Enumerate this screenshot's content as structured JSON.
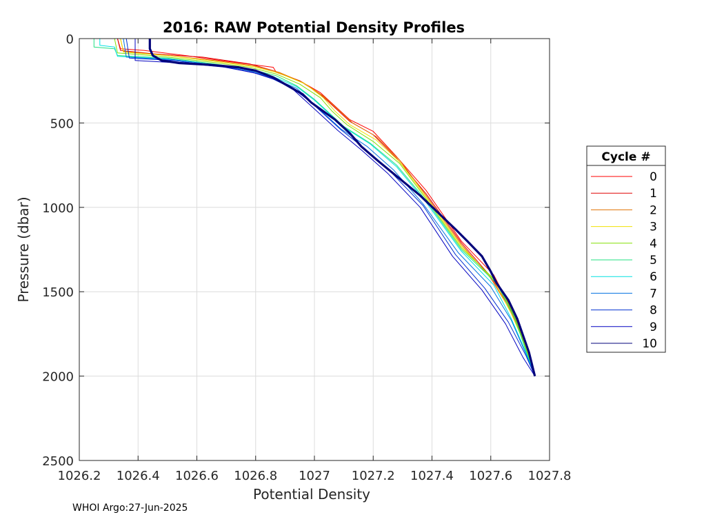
{
  "chart_data": {
    "type": "line",
    "title": "2016: RAW Potential Density Profiles",
    "xlabel": "Potential Density",
    "ylabel": "Pressure (dbar)",
    "xlim": [
      1026.2,
      1027.8
    ],
    "ylim": [
      0,
      2500
    ],
    "y_reversed": true,
    "grid": true,
    "x_ticks": [
      "1026.2",
      "1026.4",
      "1026.6",
      "1026.8",
      "1027",
      "1027.2",
      "1027.4",
      "1027.6",
      "1027.8"
    ],
    "y_ticks": [
      "0",
      "500",
      "1000",
      "1500",
      "2000",
      "2500"
    ],
    "legend": {
      "title": "Cycle #",
      "position": "right"
    },
    "series": [
      {
        "name": "0",
        "color": "#ff0000",
        "points": [
          [
            1026.33,
            0
          ],
          [
            1026.34,
            60
          ],
          [
            1026.42,
            70
          ],
          [
            1026.56,
            100
          ],
          [
            1026.68,
            130
          ],
          [
            1026.86,
            170
          ],
          [
            1026.87,
            200
          ],
          [
            1026.95,
            250
          ],
          [
            1027.02,
            320
          ],
          [
            1027.07,
            400
          ],
          [
            1027.12,
            480
          ],
          [
            1027.2,
            550
          ],
          [
            1027.28,
            700
          ],
          [
            1027.38,
            900
          ],
          [
            1027.5,
            1200
          ],
          [
            1027.61,
            1400
          ],
          [
            1027.67,
            1600
          ],
          [
            1027.72,
            1800
          ],
          [
            1027.75,
            2000
          ]
        ]
      },
      {
        "name": "1",
        "color": "#e00000",
        "points": [
          [
            1026.33,
            0
          ],
          [
            1026.34,
            70
          ],
          [
            1026.45,
            90
          ],
          [
            1026.62,
            110
          ],
          [
            1026.78,
            150
          ],
          [
            1026.86,
            190
          ],
          [
            1026.95,
            250
          ],
          [
            1027.02,
            330
          ],
          [
            1027.07,
            410
          ],
          [
            1027.12,
            490
          ],
          [
            1027.2,
            570
          ],
          [
            1027.28,
            710
          ],
          [
            1027.38,
            920
          ],
          [
            1027.5,
            1210
          ],
          [
            1027.6,
            1410
          ],
          [
            1027.67,
            1610
          ],
          [
            1027.72,
            1810
          ],
          [
            1027.75,
            2000
          ]
        ]
      },
      {
        "name": "2",
        "color": "#e07000",
        "points": [
          [
            1026.34,
            0
          ],
          [
            1026.35,
            75
          ],
          [
            1026.5,
            100
          ],
          [
            1026.66,
            130
          ],
          [
            1026.79,
            160
          ],
          [
            1026.88,
            200
          ],
          [
            1026.96,
            260
          ],
          [
            1027.03,
            340
          ],
          [
            1027.08,
            420
          ],
          [
            1027.13,
            500
          ],
          [
            1027.21,
            580
          ],
          [
            1027.29,
            720
          ],
          [
            1027.38,
            930
          ],
          [
            1027.5,
            1220
          ],
          [
            1027.6,
            1420
          ],
          [
            1027.67,
            1620
          ],
          [
            1027.72,
            1820
          ],
          [
            1027.75,
            2000
          ]
        ]
      },
      {
        "name": "3",
        "color": "#f0e000",
        "points": [
          [
            1026.34,
            0
          ],
          [
            1026.35,
            80
          ],
          [
            1026.5,
            100
          ],
          [
            1026.66,
            135
          ],
          [
            1026.79,
            165
          ],
          [
            1026.88,
            205
          ],
          [
            1026.97,
            270
          ],
          [
            1027.03,
            350
          ],
          [
            1027.07,
            430
          ],
          [
            1027.12,
            510
          ],
          [
            1027.21,
            600
          ],
          [
            1027.29,
            730
          ],
          [
            1027.38,
            940
          ],
          [
            1027.5,
            1230
          ],
          [
            1027.61,
            1430
          ],
          [
            1027.67,
            1630
          ],
          [
            1027.72,
            1830
          ],
          [
            1027.75,
            2000
          ]
        ]
      },
      {
        "name": "4",
        "color": "#80e000",
        "points": [
          [
            1026.32,
            0
          ],
          [
            1026.33,
            85
          ],
          [
            1026.48,
            105
          ],
          [
            1026.65,
            140
          ],
          [
            1026.78,
            170
          ],
          [
            1026.87,
            210
          ],
          [
            1026.95,
            270
          ],
          [
            1027.02,
            350
          ],
          [
            1027.06,
            430
          ],
          [
            1027.11,
            510
          ],
          [
            1027.2,
            610
          ],
          [
            1027.29,
            740
          ],
          [
            1027.38,
            950
          ],
          [
            1027.5,
            1240
          ],
          [
            1027.62,
            1440
          ],
          [
            1027.68,
            1640
          ],
          [
            1027.72,
            1840
          ],
          [
            1027.75,
            2000
          ]
        ]
      },
      {
        "name": "5",
        "color": "#20e080",
        "points": [
          [
            1026.25,
            0
          ],
          [
            1026.25,
            50
          ],
          [
            1026.32,
            60
          ],
          [
            1026.33,
            100
          ],
          [
            1026.5,
            115
          ],
          [
            1026.66,
            150
          ],
          [
            1026.78,
            180
          ],
          [
            1026.87,
            220
          ],
          [
            1026.94,
            280
          ],
          [
            1027.0,
            360
          ],
          [
            1027.05,
            440
          ],
          [
            1027.1,
            520
          ],
          [
            1027.19,
            620
          ],
          [
            1027.28,
            750
          ],
          [
            1027.38,
            960
          ],
          [
            1027.5,
            1250
          ],
          [
            1027.62,
            1450
          ],
          [
            1027.68,
            1650
          ],
          [
            1027.72,
            1850
          ],
          [
            1027.75,
            2000
          ]
        ]
      },
      {
        "name": "6",
        "color": "#00e0e0",
        "points": [
          [
            1026.27,
            0
          ],
          [
            1026.27,
            40
          ],
          [
            1026.32,
            50
          ],
          [
            1026.33,
            105
          ],
          [
            1026.5,
            120
          ],
          [
            1026.66,
            155
          ],
          [
            1026.78,
            185
          ],
          [
            1026.86,
            225
          ],
          [
            1026.94,
            285
          ],
          [
            1027.0,
            365
          ],
          [
            1027.05,
            445
          ],
          [
            1027.1,
            525
          ],
          [
            1027.19,
            625
          ],
          [
            1027.28,
            760
          ],
          [
            1027.38,
            970
          ],
          [
            1027.5,
            1260
          ],
          [
            1027.61,
            1460
          ],
          [
            1027.67,
            1660
          ],
          [
            1027.72,
            1860
          ],
          [
            1027.75,
            2000
          ]
        ]
      },
      {
        "name": "7",
        "color": "#0070e0",
        "points": [
          [
            1026.35,
            0
          ],
          [
            1026.36,
            110
          ],
          [
            1026.52,
            125
          ],
          [
            1026.68,
            160
          ],
          [
            1026.79,
            195
          ],
          [
            1026.86,
            235
          ],
          [
            1026.94,
            295
          ],
          [
            1026.99,
            375
          ],
          [
            1027.04,
            455
          ],
          [
            1027.09,
            535
          ],
          [
            1027.18,
            640
          ],
          [
            1027.27,
            780
          ],
          [
            1027.37,
            980
          ],
          [
            1027.49,
            1270
          ],
          [
            1027.6,
            1470
          ],
          [
            1027.67,
            1670
          ],
          [
            1027.72,
            1870
          ],
          [
            1027.75,
            2000
          ]
        ]
      },
      {
        "name": "8",
        "color": "#0030d0",
        "points": [
          [
            1026.36,
            0
          ],
          [
            1026.37,
            115
          ],
          [
            1026.52,
            130
          ],
          [
            1026.68,
            165
          ],
          [
            1026.79,
            200
          ],
          [
            1026.86,
            240
          ],
          [
            1026.93,
            300
          ],
          [
            1026.99,
            380
          ],
          [
            1027.04,
            460
          ],
          [
            1027.09,
            540
          ],
          [
            1027.17,
            650
          ],
          [
            1027.26,
            790
          ],
          [
            1027.37,
            990
          ],
          [
            1027.48,
            1280
          ],
          [
            1027.58,
            1480
          ],
          [
            1027.66,
            1680
          ],
          [
            1027.72,
            1880
          ],
          [
            1027.75,
            2000
          ]
        ]
      },
      {
        "name": "9",
        "color": "#0000c0",
        "points": [
          [
            1026.39,
            0
          ],
          [
            1026.39,
            130
          ],
          [
            1026.55,
            145
          ],
          [
            1026.7,
            170
          ],
          [
            1026.8,
            205
          ],
          [
            1026.87,
            245
          ],
          [
            1026.93,
            305
          ],
          [
            1026.98,
            385
          ],
          [
            1027.03,
            465
          ],
          [
            1027.08,
            545
          ],
          [
            1027.16,
            660
          ],
          [
            1027.25,
            800
          ],
          [
            1027.36,
            1000
          ],
          [
            1027.47,
            1290
          ],
          [
            1027.57,
            1490
          ],
          [
            1027.65,
            1690
          ],
          [
            1027.71,
            1890
          ],
          [
            1027.75,
            2000
          ]
        ]
      },
      {
        "name": "10",
        "color": "#00007a",
        "width": 3.2,
        "points": [
          [
            1026.44,
            0
          ],
          [
            1026.44,
            60
          ],
          [
            1026.45,
            100
          ],
          [
            1026.48,
            130
          ],
          [
            1026.54,
            145
          ],
          [
            1026.64,
            155
          ],
          [
            1026.74,
            170
          ],
          [
            1026.8,
            190
          ],
          [
            1026.86,
            230
          ],
          [
            1026.92,
            290
          ],
          [
            1026.96,
            330
          ],
          [
            1026.99,
            380
          ],
          [
            1027.03,
            430
          ],
          [
            1027.07,
            480
          ],
          [
            1027.12,
            560
          ],
          [
            1027.16,
            640
          ],
          [
            1027.22,
            730
          ],
          [
            1027.29,
            830
          ],
          [
            1027.36,
            930
          ],
          [
            1027.42,
            1030
          ],
          [
            1027.48,
            1130
          ],
          [
            1027.52,
            1200
          ],
          [
            1027.57,
            1290
          ],
          [
            1027.6,
            1380
          ],
          [
            1027.62,
            1450
          ],
          [
            1027.66,
            1550
          ],
          [
            1027.69,
            1660
          ],
          [
            1027.71,
            1760
          ],
          [
            1027.73,
            1860
          ],
          [
            1027.75,
            2000
          ]
        ]
      }
    ]
  },
  "footer": "WHOI Argo:27-Jun-2025"
}
